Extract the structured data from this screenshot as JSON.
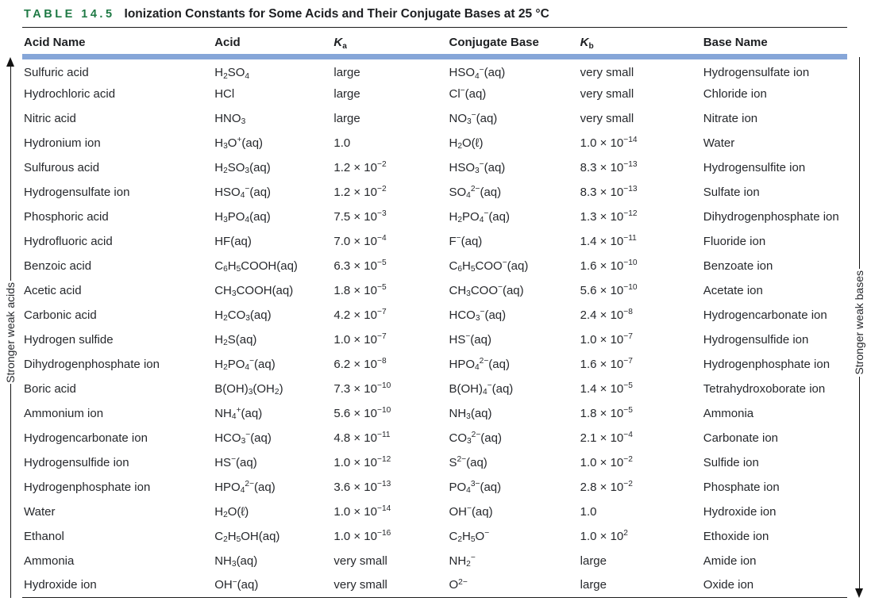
{
  "title": {
    "label": "TABLE 14.5",
    "text": "Ionization Constants for Some Acids and Their Conjugate Bases at 25 °C"
  },
  "colors": {
    "table_label_green": "#1f7a45",
    "header_bar_blue": "#86a6d8",
    "text": "#26282c"
  },
  "annotations": {
    "left_axis_label": "Stronger weak acids",
    "left_axis_arrow_direction": "up",
    "right_axis_label": "Stronger weak bases",
    "right_axis_arrow_direction": "down"
  },
  "table": {
    "columns": [
      "Acid Name",
      "Acid",
      "~K~_{a}",
      "Conjugate Base",
      "~K~_{b}",
      "Base Name"
    ],
    "rows": [
      [
        "Sulfuric acid",
        "H_{2}SO_{4}",
        "large",
        "HSO_{4}^{−}(aq)",
        "very small",
        "Hydrogensulfate ion"
      ],
      [
        "Hydrochloric acid",
        "HCl",
        "large",
        "Cl^{−}(aq)",
        "very small",
        "Chloride ion"
      ],
      [
        "Nitric acid",
        "HNO_{3}",
        "large",
        "NO_{3}^{−}(aq)",
        "very small",
        "Nitrate ion"
      ],
      [
        "Hydronium ion",
        "H_{3}O^{+}(aq)",
        "1.0",
        "H_{2}O(ℓ)",
        "1.0 × 10^{−14}",
        "Water"
      ],
      [
        "Sulfurous acid",
        "H_{2}SO_{3}(aq)",
        "1.2 × 10^{−2}",
        "HSO_{3}^{−}(aq)",
        "8.3 × 10^{−13}",
        "Hydrogensulfite ion"
      ],
      [
        "Hydrogensulfate ion",
        "HSO_{4}^{−}(aq)",
        "1.2 × 10^{−2}",
        "SO_{4}^{2−}(aq)",
        "8.3 × 10^{−13}",
        "Sulfate ion"
      ],
      [
        "Phosphoric acid",
        "H_{3}PO_{4}(aq)",
        "7.5 × 10^{−3}",
        "H_{2}PO_{4}^{−}(aq)",
        "1.3 × 10^{−12}",
        "Dihydrogenphosphate ion"
      ],
      [
        "Hydrofluoric acid",
        "HF(aq)",
        "7.0 × 10^{−4}",
        "F^{−}(aq)",
        "1.4 × 10^{−11}",
        "Fluoride ion"
      ],
      [
        "Benzoic acid",
        "C_{6}H_{5}COOH(aq)",
        "6.3 × 10^{−5}",
        "C_{6}H_{5}COO^{−}(aq)",
        "1.6 × 10^{−10}",
        "Benzoate ion"
      ],
      [
        "Acetic acid",
        "CH_{3}COOH(aq)",
        "1.8 × 10^{−5}",
        "CH_{3}COO^{−}(aq)",
        "5.6 × 10^{−10}",
        "Acetate ion"
      ],
      [
        "Carbonic acid",
        "H_{2}CO_{3}(aq)",
        "4.2 × 10^{−7}",
        "HCO_{3}^{−}(aq)",
        "2.4 × 10^{−8}",
        "Hydrogencarbonate ion"
      ],
      [
        "Hydrogen sulfide",
        "H_{2}S(aq)",
        "1.0 × 10^{−7}",
        "HS^{−}(aq)",
        "1.0 × 10^{−7}",
        "Hydrogensulfide ion"
      ],
      [
        "Dihydrogenphosphate ion",
        "H_{2}PO_{4}^{−}(aq)",
        "6.2 × 10^{−8}",
        "HPO_{4}^{2−}(aq)",
        "1.6 × 10^{−7}",
        "Hydrogenphosphate ion"
      ],
      [
        "Boric acid",
        "B(OH)_{3}(OH_{2})",
        "7.3 × 10^{−10}",
        "B(OH)_{4}^{−}(aq)",
        "1.4 × 10^{−5}",
        "Tetrahydroxoborate ion"
      ],
      [
        "Ammonium ion",
        "NH_{4}^{+}(aq)",
        "5.6 × 10^{−10}",
        "NH_{3}(aq)",
        "1.8 × 10^{−5}",
        "Ammonia"
      ],
      [
        "Hydrogencarbonate ion",
        "HCO_{3}^{−}(aq)",
        "4.8 × 10^{−11}",
        "CO_{3}^{2−}(aq)",
        "2.1 × 10^{−4}",
        "Carbonate ion"
      ],
      [
        "Hydrogensulfide ion",
        "HS^{−}(aq)",
        "1.0 × 10^{−12}",
        "S^{2−}(aq)",
        "1.0 × 10^{−2}",
        "Sulfide ion"
      ],
      [
        "Hydrogenphosphate ion",
        "HPO_{4}^{2−}(aq)",
        "3.6 × 10^{−13}",
        "PO_{4}^{3−}(aq)",
        "2.8 × 10^{−2}",
        "Phosphate ion"
      ],
      [
        "Water",
        "H_{2}O(ℓ)",
        "1.0 × 10^{−14}",
        "OH^{−}(aq)",
        "1.0",
        "Hydroxide ion"
      ],
      [
        "Ethanol",
        "C_{2}H_{5}OH(aq)",
        "1.0 × 10^{−16}",
        "C_{2}H_{5}O^{−}",
        "1.0 × 10^{2}",
        "Ethoxide ion"
      ],
      [
        "Ammonia",
        "NH_{3}(aq)",
        "very small",
        "NH_{2}^{−}",
        "large",
        "Amide ion"
      ],
      [
        "Hydroxide ion",
        "OH^{−}(aq)",
        "very small",
        "O^{2−}",
        "large",
        "Oxide ion"
      ]
    ]
  }
}
